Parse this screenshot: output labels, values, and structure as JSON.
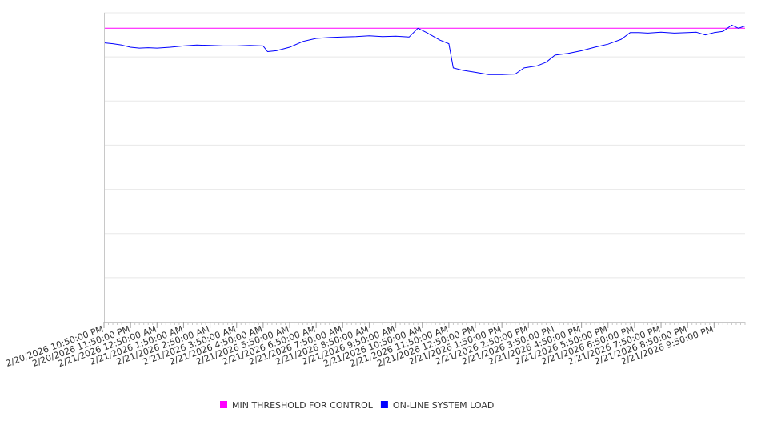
{
  "chart_data": {
    "type": "line",
    "title": "",
    "xlabel": "",
    "ylabel": "",
    "ylim": [
      0,
      7
    ],
    "grid": true,
    "legend_position": "bottom-center",
    "tick_labels": [
      "2/20/2026 10:50:00 PM",
      "2/20/2026 11:50:00 PM",
      "2/21/2026 12:50:00 AM",
      "2/21/2026 1:50:00 AM",
      "2/21/2026 2:50:00 AM",
      "2/21/2026 3:50:00 AM",
      "2/21/2026 4:50:00 AM",
      "2/21/2026 5:50:00 AM",
      "2/21/2026 6:50:00 AM",
      "2/21/2026 7:50:00 AM",
      "2/21/2026 8:50:00 AM",
      "2/21/2026 9:50:00 AM",
      "2/21/2026 10:50:00 AM",
      "2/21/2026 11:50:00 AM",
      "2/21/2026 12:50:00 PM",
      "2/21/2026 1:50:00 PM",
      "2/21/2026 2:50:00 PM",
      "2/21/2026 3:50:00 PM",
      "2/21/2026 4:50:00 PM",
      "2/21/2026 5:50:00 PM",
      "2/21/2026 6:50:00 PM",
      "2/21/2026 7:50:00 PM",
      "2/21/2026 8:50:00 PM",
      "2/21/2026 9:50:00 PM"
    ],
    "x_start": "2/20/2026 10:50:00 PM",
    "x_end": "2/21/2026 11:00:00 PM",
    "series": [
      {
        "name": "MIN THRESHOLD FOR CONTROL",
        "color": "#ff00ff",
        "points": [
          [
            "2/20/2026 10:50:00 PM",
            6.65
          ],
          [
            "2/21/2026 11:00:00 PM",
            6.65
          ]
        ]
      },
      {
        "name": "ON-LINE SYSTEM LOAD",
        "color": "#0000ff",
        "points": [
          [
            "2/20/2026 10:50:00 PM",
            6.32
          ],
          [
            "2/20/2026 11:10:00 PM",
            6.3
          ],
          [
            "2/20/2026 11:30:00 PM",
            6.27
          ],
          [
            "2/20/2026 11:50:00 PM",
            6.22
          ],
          [
            "2/21/2026 12:10:00 AM",
            6.2
          ],
          [
            "2/21/2026 12:30:00 AM",
            6.21
          ],
          [
            "2/21/2026 12:50:00 AM",
            6.2
          ],
          [
            "2/21/2026 1:20:00 AM",
            6.22
          ],
          [
            "2/21/2026 1:50:00 AM",
            6.25
          ],
          [
            "2/21/2026 2:20:00 AM",
            6.27
          ],
          [
            "2/21/2026 2:50:00 AM",
            6.26
          ],
          [
            "2/21/2026 3:20:00 AM",
            6.25
          ],
          [
            "2/21/2026 3:50:00 AM",
            6.25
          ],
          [
            "2/21/2026 4:20:00 AM",
            6.26
          ],
          [
            "2/21/2026 4:50:00 AM",
            6.25
          ],
          [
            "2/21/2026 5:00:00 AM",
            6.12
          ],
          [
            "2/21/2026 5:20:00 AM",
            6.14
          ],
          [
            "2/21/2026 5:50:00 AM",
            6.22
          ],
          [
            "2/21/2026 6:20:00 AM",
            6.35
          ],
          [
            "2/21/2026 6:50:00 AM",
            6.42
          ],
          [
            "2/21/2026 7:20:00 AM",
            6.44
          ],
          [
            "2/21/2026 7:50:00 AM",
            6.45
          ],
          [
            "2/21/2026 8:20:00 AM",
            6.46
          ],
          [
            "2/21/2026 8:50:00 AM",
            6.48
          ],
          [
            "2/21/2026 9:20:00 AM",
            6.46
          ],
          [
            "2/21/2026 9:50:00 AM",
            6.47
          ],
          [
            "2/21/2026 10:20:00 AM",
            6.45
          ],
          [
            "2/21/2026 10:40:00 AM",
            6.65
          ],
          [
            "2/21/2026 11:00:00 AM",
            6.55
          ],
          [
            "2/21/2026 11:30:00 AM",
            6.38
          ],
          [
            "2/21/2026 11:50:00 AM",
            6.3
          ],
          [
            "2/21/2026 12:00:00 PM",
            5.75
          ],
          [
            "2/21/2026 12:20:00 PM",
            5.7
          ],
          [
            "2/21/2026 12:50:00 PM",
            5.65
          ],
          [
            "2/21/2026 1:20:00 PM",
            5.6
          ],
          [
            "2/21/2026 1:50:00 PM",
            5.6
          ],
          [
            "2/21/2026 2:20:00 PM",
            5.61
          ],
          [
            "2/21/2026 2:40:00 PM",
            5.75
          ],
          [
            "2/21/2026 3:10:00 PM",
            5.8
          ],
          [
            "2/21/2026 3:30:00 PM",
            5.88
          ],
          [
            "2/21/2026 3:50:00 PM",
            6.04
          ],
          [
            "2/21/2026 4:20:00 PM",
            6.08
          ],
          [
            "2/21/2026 4:50:00 PM",
            6.14
          ],
          [
            "2/21/2026 5:20:00 PM",
            6.22
          ],
          [
            "2/21/2026 5:50:00 PM",
            6.29
          ],
          [
            "2/21/2026 6:20:00 PM",
            6.4
          ],
          [
            "2/21/2026 6:40:00 PM",
            6.55
          ],
          [
            "2/21/2026 7:00:00 PM",
            6.55
          ],
          [
            "2/21/2026 7:20:00 PM",
            6.54
          ],
          [
            "2/21/2026 7:50:00 PM",
            6.56
          ],
          [
            "2/21/2026 8:20:00 PM",
            6.54
          ],
          [
            "2/21/2026 8:50:00 PM",
            6.55
          ],
          [
            "2/21/2026 9:10:00 PM",
            6.56
          ],
          [
            "2/21/2026 9:30:00 PM",
            6.5
          ],
          [
            "2/21/2026 9:50:00 PM",
            6.55
          ],
          [
            "2/21/2026 10:10:00 PM",
            6.58
          ],
          [
            "2/21/2026 10:30:00 PM",
            6.72
          ],
          [
            "2/21/2026 10:45:00 PM",
            6.65
          ],
          [
            "2/21/2026 11:00:00 PM",
            6.7
          ]
        ]
      }
    ]
  }
}
